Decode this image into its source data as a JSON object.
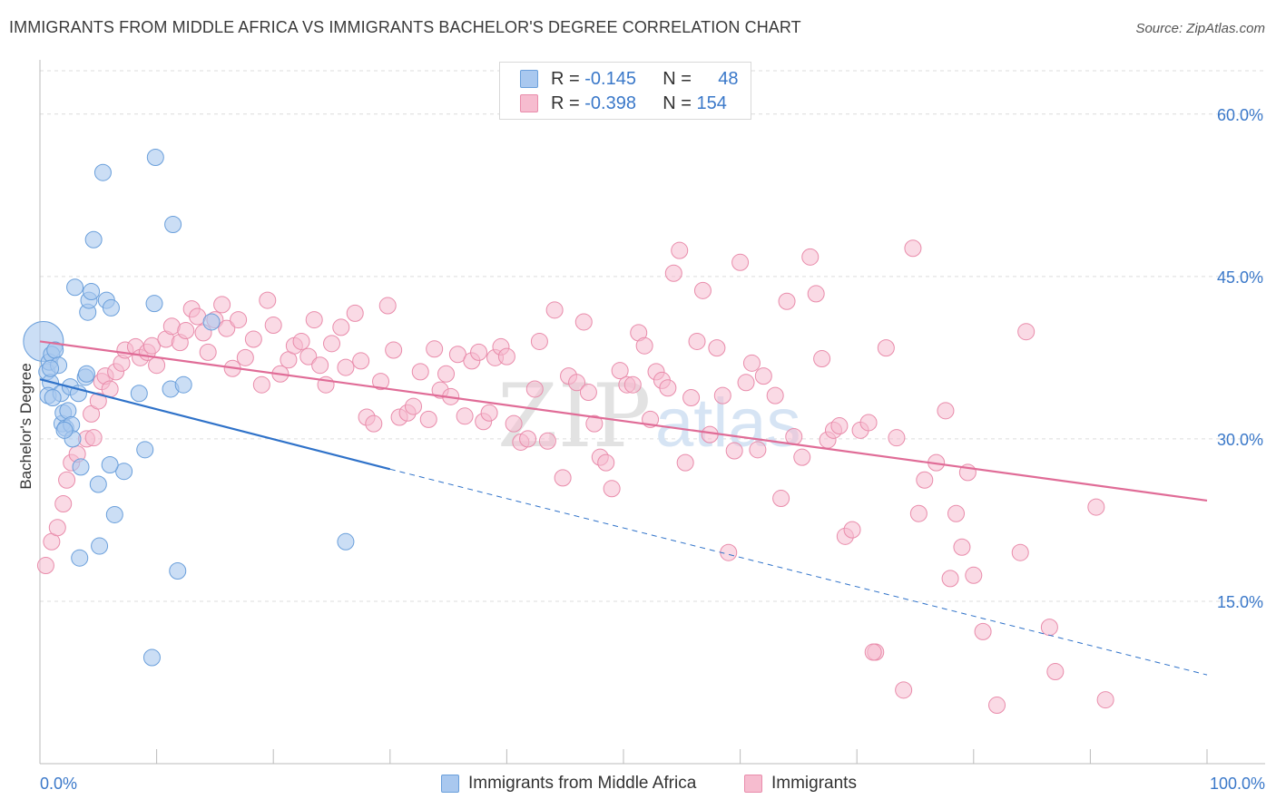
{
  "title": "IMMIGRANTS FROM MIDDLE AFRICA VS IMMIGRANTS BACHELOR'S DEGREE CORRELATION CHART",
  "source": "Source: ZipAtlas.com",
  "watermark": {
    "zip": "ZIP",
    "atlas": "atlas"
  },
  "legend": {
    "rows": [
      {
        "r_label": "R =",
        "r_value": "-0.145",
        "n_label": "N =",
        "n_value": "48",
        "color": "#a9c8ef",
        "border": "#6a9fdb"
      },
      {
        "r_label": "R =",
        "r_value": "-0.398",
        "n_label": "N =",
        "n_value": "154",
        "color": "#f6bccf",
        "border": "#e98cab"
      }
    ],
    "bottom": [
      {
        "label": "Immigrants from Middle Africa",
        "color": "#a9c8ef",
        "border": "#6a9fdb"
      },
      {
        "label": "Immigrants",
        "color": "#f6bccf",
        "border": "#e98cab"
      }
    ]
  },
  "chart_data": {
    "type": "scatter",
    "title": "IMMIGRANTS FROM MIDDLE AFRICA VS IMMIGRANTS BACHELOR'S DEGREE CORRELATION CHART",
    "xlabel": "",
    "ylabel": "Bachelor's Degree",
    "xlim": [
      0,
      100
    ],
    "ylim": [
      0,
      64
    ],
    "x_tick_labels": [
      "0.0%",
      "100.0%"
    ],
    "y_ticks": [
      15,
      30,
      45,
      60
    ],
    "y_tick_labels": [
      "15.0%",
      "30.0%",
      "45.0%",
      "60.0%"
    ],
    "grid": true,
    "legend_position": "top-center",
    "series": [
      {
        "name": "Immigrants from Middle Africa",
        "color": "#a9c8ef",
        "stroke": "#6a9fdb",
        "trend": {
          "x0": 0,
          "y0": 35.5,
          "x1": 30,
          "y1": 27.2,
          "dash_x1": 100,
          "dash_y1": 8.2,
          "color": "#2f72c9"
        },
        "points": [
          [
            0.3,
            39.0,
            22
          ],
          [
            0.6,
            36.2,
            9
          ],
          [
            0.8,
            37.1,
            9
          ],
          [
            0.9,
            35.2,
            9
          ],
          [
            0.7,
            34.0,
            9
          ],
          [
            1.0,
            37.8,
            9
          ],
          [
            1.3,
            38.2,
            9
          ],
          [
            1.6,
            36.8,
            9
          ],
          [
            1.8,
            34.2,
            9
          ],
          [
            1.9,
            31.4,
            9
          ],
          [
            2.0,
            32.4,
            9
          ],
          [
            2.2,
            31.0,
            9
          ],
          [
            2.4,
            32.6,
            9
          ],
          [
            2.6,
            34.8,
            9
          ],
          [
            2.7,
            31.3,
            9
          ],
          [
            2.8,
            30.0,
            9
          ],
          [
            3.0,
            44.0,
            9
          ],
          [
            3.3,
            34.2,
            9
          ],
          [
            3.5,
            27.4,
            9
          ],
          [
            3.9,
            35.7,
            9
          ],
          [
            4.0,
            36.0,
            9
          ],
          [
            4.1,
            41.7,
            9
          ],
          [
            4.2,
            42.8,
            9
          ],
          [
            4.4,
            43.6,
            9
          ],
          [
            4.6,
            48.4,
            9
          ],
          [
            5.0,
            25.8,
            9
          ],
          [
            5.1,
            20.1,
            9
          ],
          [
            5.4,
            54.6,
            9
          ],
          [
            5.7,
            42.8,
            9
          ],
          [
            6.1,
            42.1,
            9
          ],
          [
            6.4,
            23.0,
            9
          ],
          [
            7.2,
            27.0,
            9
          ],
          [
            8.5,
            34.2,
            9
          ],
          [
            6.0,
            27.6,
            9
          ],
          [
            3.4,
            19.0,
            9
          ],
          [
            9.0,
            29.0,
            9
          ],
          [
            9.6,
            9.8,
            9
          ],
          [
            9.9,
            56.0,
            9
          ],
          [
            9.8,
            42.5,
            9
          ],
          [
            11.4,
            49.8,
            9
          ],
          [
            11.2,
            34.6,
            9
          ],
          [
            11.8,
            17.8,
            9
          ],
          [
            12.3,
            35.0,
            9
          ],
          [
            14.7,
            40.8,
            9
          ],
          [
            26.2,
            20.5,
            9
          ],
          [
            1.1,
            33.8,
            9
          ],
          [
            2.1,
            30.8,
            9
          ],
          [
            0.9,
            36.5,
            9
          ]
        ]
      },
      {
        "name": "Immigrants",
        "color": "#f6bccf",
        "stroke": "#e98cab",
        "trend": {
          "x0": 0,
          "y0": 39.0,
          "x1": 100,
          "y1": 24.3,
          "color": "#e06c97"
        },
        "points": [
          [
            0.5,
            18.3
          ],
          [
            1.0,
            20.5
          ],
          [
            1.5,
            21.8
          ],
          [
            2.0,
            24.0
          ],
          [
            2.3,
            26.2
          ],
          [
            2.7,
            27.8
          ],
          [
            3.2,
            28.6
          ],
          [
            4.0,
            30.0
          ],
          [
            4.4,
            32.3
          ],
          [
            4.6,
            30.1
          ],
          [
            5.0,
            33.5
          ],
          [
            5.3,
            35.3
          ],
          [
            5.6,
            35.8
          ],
          [
            6.0,
            34.6
          ],
          [
            6.5,
            36.2
          ],
          [
            7.0,
            37.0
          ],
          [
            7.3,
            38.2
          ],
          [
            8.2,
            38.5
          ],
          [
            8.6,
            37.5
          ],
          [
            9.2,
            38.0
          ],
          [
            9.6,
            38.6
          ],
          [
            10.0,
            36.8
          ],
          [
            10.8,
            39.2
          ],
          [
            11.3,
            40.4
          ],
          [
            12.0,
            38.9
          ],
          [
            12.5,
            40.0
          ],
          [
            13.0,
            42.0
          ],
          [
            13.5,
            41.3
          ],
          [
            14.0,
            39.8
          ],
          [
            14.4,
            38.0
          ],
          [
            15.0,
            41.0
          ],
          [
            15.6,
            42.4
          ],
          [
            16.0,
            40.2
          ],
          [
            16.5,
            36.5
          ],
          [
            17.0,
            41.0
          ],
          [
            17.6,
            37.5
          ],
          [
            18.3,
            39.2
          ],
          [
            19.0,
            35.0
          ],
          [
            19.5,
            42.8
          ],
          [
            20.0,
            40.5
          ],
          [
            20.6,
            36.0
          ],
          [
            21.3,
            37.3
          ],
          [
            21.8,
            38.6
          ],
          [
            22.4,
            39.0
          ],
          [
            23.0,
            37.6
          ],
          [
            23.5,
            41.0
          ],
          [
            24.0,
            36.8
          ],
          [
            24.5,
            35.0
          ],
          [
            25.0,
            38.8
          ],
          [
            25.8,
            40.3
          ],
          [
            26.2,
            36.6
          ],
          [
            27.0,
            41.6
          ],
          [
            27.5,
            37.2
          ],
          [
            28.0,
            32.0
          ],
          [
            28.6,
            31.4
          ],
          [
            29.2,
            35.3
          ],
          [
            29.8,
            42.3
          ],
          [
            30.3,
            38.2
          ],
          [
            30.8,
            32.0
          ],
          [
            31.5,
            32.4
          ],
          [
            32.0,
            33.0
          ],
          [
            32.6,
            36.2
          ],
          [
            33.3,
            31.8
          ],
          [
            33.8,
            38.3
          ],
          [
            34.3,
            34.5
          ],
          [
            34.8,
            36.0
          ],
          [
            35.2,
            33.9
          ],
          [
            35.8,
            37.8
          ],
          [
            36.4,
            32.1
          ],
          [
            37.0,
            37.2
          ],
          [
            37.6,
            38.0
          ],
          [
            38.0,
            31.6
          ],
          [
            38.5,
            32.4
          ],
          [
            39.0,
            37.5
          ],
          [
            39.5,
            38.5
          ],
          [
            40.0,
            37.6
          ],
          [
            40.6,
            31.4
          ],
          [
            41.2,
            29.7
          ],
          [
            41.8,
            30.0
          ],
          [
            42.4,
            34.6
          ],
          [
            42.8,
            39.0
          ],
          [
            43.5,
            29.8
          ],
          [
            44.1,
            41.9
          ],
          [
            44.8,
            26.4
          ],
          [
            45.3,
            35.8
          ],
          [
            46.0,
            35.2
          ],
          [
            46.6,
            40.8
          ],
          [
            47.0,
            34.3
          ],
          [
            47.5,
            31.4
          ],
          [
            48.0,
            28.3
          ],
          [
            48.5,
            27.8
          ],
          [
            49.0,
            25.4
          ],
          [
            49.7,
            36.3
          ],
          [
            50.3,
            35.0
          ],
          [
            50.8,
            35.0
          ],
          [
            51.3,
            39.8
          ],
          [
            51.8,
            38.6
          ],
          [
            52.3,
            31.8
          ],
          [
            52.8,
            36.2
          ],
          [
            53.3,
            35.4
          ],
          [
            53.8,
            34.7
          ],
          [
            54.3,
            45.3
          ],
          [
            54.8,
            47.4
          ],
          [
            55.3,
            27.8
          ],
          [
            55.8,
            33.8
          ],
          [
            56.3,
            39.0
          ],
          [
            56.8,
            43.7
          ],
          [
            57.4,
            30.4
          ],
          [
            58.0,
            38.4
          ],
          [
            58.5,
            34.0
          ],
          [
            59.0,
            19.5
          ],
          [
            59.5,
            28.9
          ],
          [
            60.0,
            46.3
          ],
          [
            60.5,
            35.2
          ],
          [
            61.0,
            37.0
          ],
          [
            61.5,
            29.0
          ],
          [
            62.0,
            35.8
          ],
          [
            63.0,
            34.0
          ],
          [
            63.5,
            24.5
          ],
          [
            64.0,
            42.7
          ],
          [
            64.6,
            30.2
          ],
          [
            65.3,
            28.3
          ],
          [
            66.0,
            46.8
          ],
          [
            66.5,
            43.4
          ],
          [
            67.0,
            37.4
          ],
          [
            67.5,
            29.9
          ],
          [
            68.0,
            30.8
          ],
          [
            68.5,
            31.2
          ],
          [
            69.0,
            21.0
          ],
          [
            69.6,
            21.6
          ],
          [
            70.3,
            30.8
          ],
          [
            71.0,
            31.5
          ],
          [
            71.6,
            10.3
          ],
          [
            72.5,
            38.4
          ],
          [
            73.4,
            30.1
          ],
          [
            74.0,
            6.8
          ],
          [
            74.8,
            47.6
          ],
          [
            75.3,
            23.1
          ],
          [
            75.8,
            26.2
          ],
          [
            76.8,
            27.8
          ],
          [
            77.6,
            32.6
          ],
          [
            78.0,
            17.1
          ],
          [
            78.5,
            23.1
          ],
          [
            79.0,
            20.0
          ],
          [
            79.5,
            26.9
          ],
          [
            80.0,
            17.4
          ],
          [
            80.8,
            12.2
          ],
          [
            82.0,
            5.4
          ],
          [
            84.0,
            19.5
          ],
          [
            84.5,
            39.9
          ],
          [
            86.5,
            12.6
          ],
          [
            87.0,
            8.5
          ],
          [
            90.5,
            23.7
          ],
          [
            91.3,
            5.9
          ],
          [
            71.4,
            10.3
          ]
        ]
      }
    ]
  }
}
